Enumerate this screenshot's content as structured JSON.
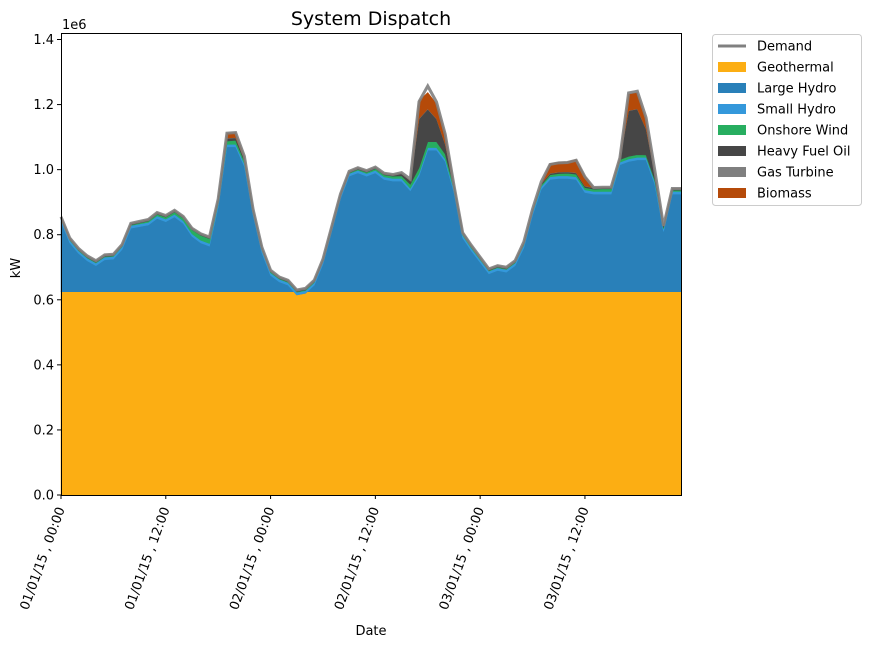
{
  "chart_data": {
    "type": "area",
    "stacked": true,
    "title": "System Dispatch",
    "xlabel": "Date",
    "ylabel": "kW",
    "y_offset_label": "1e6",
    "y_multiplier": 1000000,
    "ylim": [
      0,
      1.42
    ],
    "y_ticks": [
      0.0,
      0.2,
      0.4,
      0.6,
      0.8,
      1.0,
      1.2,
      1.4
    ],
    "y_tick_labels": [
      "0.0",
      "0.2",
      "0.4",
      "0.6",
      "0.8",
      "1.0",
      "1.2",
      "1.4"
    ],
    "x_hours": [
      0,
      1,
      2,
      3,
      4,
      5,
      6,
      7,
      8,
      9,
      10,
      11,
      12,
      13,
      14,
      15,
      16,
      17,
      18,
      19,
      20,
      21,
      22,
      23,
      24,
      25,
      26,
      27,
      28,
      29,
      30,
      31,
      32,
      33,
      34,
      35,
      36,
      37,
      38,
      39,
      40,
      41,
      42,
      43,
      44,
      45,
      46,
      47,
      48,
      49,
      50,
      51,
      52,
      53,
      54,
      55,
      56,
      57,
      58,
      59,
      60,
      61,
      62,
      63,
      64,
      65,
      66,
      67,
      68,
      69,
      70,
      71
    ],
    "x_ticks": [
      {
        "hour": 0,
        "label": "01/01/15 , 00:00"
      },
      {
        "hour": 12,
        "label": "01/01/15 , 12:00"
      },
      {
        "hour": 24,
        "label": "02/01/15 , 00:00"
      },
      {
        "hour": 36,
        "label": "02/01/15 , 12:00"
      },
      {
        "hour": 48,
        "label": "03/01/15 , 00:00"
      },
      {
        "hour": 60,
        "label": "03/01/15 , 12:00"
      }
    ],
    "series": [
      {
        "name": "Geothermal",
        "color": "#fcae13",
        "values": [
          0.625,
          0.625,
          0.625,
          0.625,
          0.625,
          0.625,
          0.625,
          0.625,
          0.625,
          0.625,
          0.625,
          0.625,
          0.625,
          0.625,
          0.625,
          0.625,
          0.625,
          0.625,
          0.625,
          0.625,
          0.625,
          0.625,
          0.625,
          0.625,
          0.625,
          0.625,
          0.625,
          0.625,
          0.625,
          0.625,
          0.625,
          0.625,
          0.625,
          0.625,
          0.625,
          0.625,
          0.625,
          0.625,
          0.625,
          0.625,
          0.625,
          0.625,
          0.625,
          0.625,
          0.625,
          0.625,
          0.625,
          0.625,
          0.625,
          0.625,
          0.625,
          0.625,
          0.625,
          0.625,
          0.625,
          0.625,
          0.625,
          0.625,
          0.625,
          0.625,
          0.625,
          0.625,
          0.625,
          0.625,
          0.625,
          0.625,
          0.625,
          0.625,
          0.625,
          0.625,
          0.625,
          0.625
        ]
      },
      {
        "name": "Large Hydro",
        "color": "#2980b9",
        "values": [
          0.215,
          0.15,
          0.118,
          0.095,
          0.08,
          0.098,
          0.1,
          0.13,
          0.195,
          0.2,
          0.205,
          0.225,
          0.215,
          0.23,
          0.21,
          0.17,
          0.15,
          0.14,
          0.26,
          0.445,
          0.445,
          0.385,
          0.235,
          0.12,
          0.05,
          0.03,
          0.02,
          -0.01,
          -0.005,
          0.02,
          0.085,
          0.185,
          0.285,
          0.355,
          0.365,
          0.355,
          0.365,
          0.345,
          0.34,
          0.34,
          0.31,
          0.355,
          0.435,
          0.435,
          0.4,
          0.305,
          0.165,
          0.125,
          0.09,
          0.055,
          0.065,
          0.06,
          0.08,
          0.135,
          0.235,
          0.315,
          0.345,
          0.348,
          0.348,
          0.345,
          0.305,
          0.3,
          0.3,
          0.3,
          0.39,
          0.4,
          0.405,
          0.405,
          0.33,
          0.185,
          0.3,
          0.3
        ]
      },
      {
        "name": "Small Hydro",
        "color": "#3498db",
        "values": [
          0.008,
          0.008,
          0.008,
          0.008,
          0.008,
          0.008,
          0.008,
          0.008,
          0.008,
          0.008,
          0.008,
          0.008,
          0.008,
          0.008,
          0.008,
          0.008,
          0.008,
          0.008,
          0.008,
          0.008,
          0.008,
          0.008,
          0.008,
          0.008,
          0.008,
          0.008,
          0.008,
          0.008,
          0.008,
          0.008,
          0.008,
          0.008,
          0.008,
          0.008,
          0.008,
          0.008,
          0.008,
          0.008,
          0.008,
          0.008,
          0.008,
          0.008,
          0.008,
          0.008,
          0.008,
          0.008,
          0.008,
          0.008,
          0.008,
          0.008,
          0.008,
          0.008,
          0.008,
          0.008,
          0.008,
          0.008,
          0.008,
          0.008,
          0.008,
          0.008,
          0.008,
          0.008,
          0.008,
          0.008,
          0.008,
          0.008,
          0.008,
          0.008,
          0.008,
          0.008,
          0.008,
          0.008
        ]
      },
      {
        "name": "Onshore Wind",
        "color": "#27ae60",
        "values": [
          0.002,
          0.002,
          0.002,
          0.002,
          0.002,
          0.002,
          0.002,
          0.002,
          0.002,
          0.003,
          0.004,
          0.005,
          0.006,
          0.007,
          0.008,
          0.012,
          0.015,
          0.015,
          0.012,
          0.01,
          0.012,
          0.008,
          0.005,
          0.004,
          0.003,
          0.002,
          0.002,
          0.002,
          0.002,
          0.002,
          0.002,
          0.002,
          0.002,
          0.002,
          0.003,
          0.004,
          0.005,
          0.006,
          0.007,
          0.008,
          0.012,
          0.018,
          0.018,
          0.018,
          0.015,
          0.008,
          0.005,
          0.004,
          0.003,
          0.002,
          0.002,
          0.002,
          0.002,
          0.003,
          0.004,
          0.005,
          0.006,
          0.007,
          0.008,
          0.008,
          0.007,
          0.007,
          0.008,
          0.008,
          0.008,
          0.008,
          0.008,
          0.007,
          0.006,
          0.004,
          0.004,
          0.004
        ]
      },
      {
        "name": "Heavy Fuel Oil",
        "color": "#464646",
        "values": [
          0.004,
          0.004,
          0.004,
          0.004,
          0.004,
          0.004,
          0.004,
          0.004,
          0.004,
          0.004,
          0.004,
          0.004,
          0.004,
          0.004,
          0.004,
          0.004,
          0.004,
          0.004,
          0.004,
          0.008,
          0.008,
          0.006,
          0.004,
          0.004,
          0.004,
          0.004,
          0.004,
          0.004,
          0.004,
          0.004,
          0.004,
          0.004,
          0.004,
          0.004,
          0.004,
          0.004,
          0.004,
          0.004,
          0.004,
          0.008,
          0.01,
          0.15,
          0.1,
          0.07,
          0.03,
          0.008,
          0.004,
          0.004,
          0.004,
          0.004,
          0.004,
          0.004,
          0.004,
          0.004,
          0.004,
          0.004,
          0.004,
          0.004,
          0.004,
          0.004,
          0.004,
          0.004,
          0.004,
          0.004,
          0.004,
          0.14,
          0.14,
          0.08,
          0.02,
          0.004,
          0.004,
          0.004
        ]
      },
      {
        "name": "Gas Turbine",
        "color": "#7f7f7f",
        "values": [
          0.001,
          0.001,
          0.001,
          0.001,
          0.001,
          0.001,
          0.001,
          0.001,
          0.001,
          0.001,
          0.001,
          0.001,
          0.001,
          0.001,
          0.001,
          0.001,
          0.001,
          0.001,
          0.001,
          0.001,
          0.001,
          0.001,
          0.001,
          0.001,
          0.001,
          0.001,
          0.001,
          0.001,
          0.001,
          0.001,
          0.001,
          0.001,
          0.001,
          0.001,
          0.001,
          0.001,
          0.001,
          0.001,
          0.001,
          0.001,
          0.001,
          0.001,
          0.001,
          0.001,
          0.001,
          0.001,
          0.001,
          0.001,
          0.001,
          0.001,
          0.001,
          0.001,
          0.001,
          0.001,
          0.001,
          0.001,
          0.001,
          0.001,
          0.001,
          0.001,
          0.001,
          0.001,
          0.001,
          0.001,
          0.001,
          0.001,
          0.001,
          0.001,
          0.001,
          0.001,
          0.001,
          0.001
        ]
      },
      {
        "name": "Biomass",
        "color": "#b54a09",
        "values": [
          0,
          0,
          0,
          0,
          0,
          0,
          0,
          0,
          0,
          0,
          0,
          0,
          0,
          0,
          0,
          0,
          0,
          0,
          0,
          0.015,
          0.015,
          0.008,
          0,
          0,
          0,
          0,
          0,
          0,
          0,
          0,
          0,
          0,
          0,
          0,
          0,
          0,
          0,
          0,
          0,
          0,
          0,
          0.055,
          0.05,
          0.045,
          0.03,
          0,
          0,
          0,
          0,
          0,
          0,
          0,
          0,
          0,
          0,
          0,
          0.03,
          0.03,
          0.03,
          0.04,
          0.03,
          0,
          0,
          0,
          0,
          0.05,
          0.05,
          0.03,
          0,
          0,
          0,
          0
        ]
      }
    ],
    "demand": {
      "name": "Demand",
      "color": "#808080",
      "values": [
        0.855,
        0.79,
        0.758,
        0.735,
        0.72,
        0.738,
        0.74,
        0.77,
        0.835,
        0.841,
        0.847,
        0.868,
        0.859,
        0.875,
        0.856,
        0.82,
        0.803,
        0.793,
        0.91,
        1.112,
        1.114,
        1.041,
        0.878,
        0.762,
        0.691,
        0.67,
        0.66,
        0.63,
        0.635,
        0.66,
        0.725,
        0.825,
        0.925,
        0.995,
        1.006,
        0.997,
        1.008,
        0.989,
        0.985,
        0.991,
        0.971,
        1.209,
        1.257,
        1.208,
        1.109,
        0.952,
        0.806,
        0.767,
        0.731,
        0.695,
        0.705,
        0.7,
        0.72,
        0.778,
        0.879,
        0.963,
        1.016,
        1.021,
        1.022,
        1.029,
        0.978,
        0.945,
        0.946,
        0.946,
        1.036,
        1.236,
        1.241,
        1.16,
        0.998,
        0.827,
        0.942,
        0.942
      ]
    },
    "legend": {
      "position": "outside-right-top",
      "order": [
        "Demand",
        "Geothermal",
        "Large Hydro",
        "Small Hydro",
        "Onshore Wind",
        "Heavy Fuel Oil",
        "Gas Turbine",
        "Biomass"
      ]
    }
  }
}
